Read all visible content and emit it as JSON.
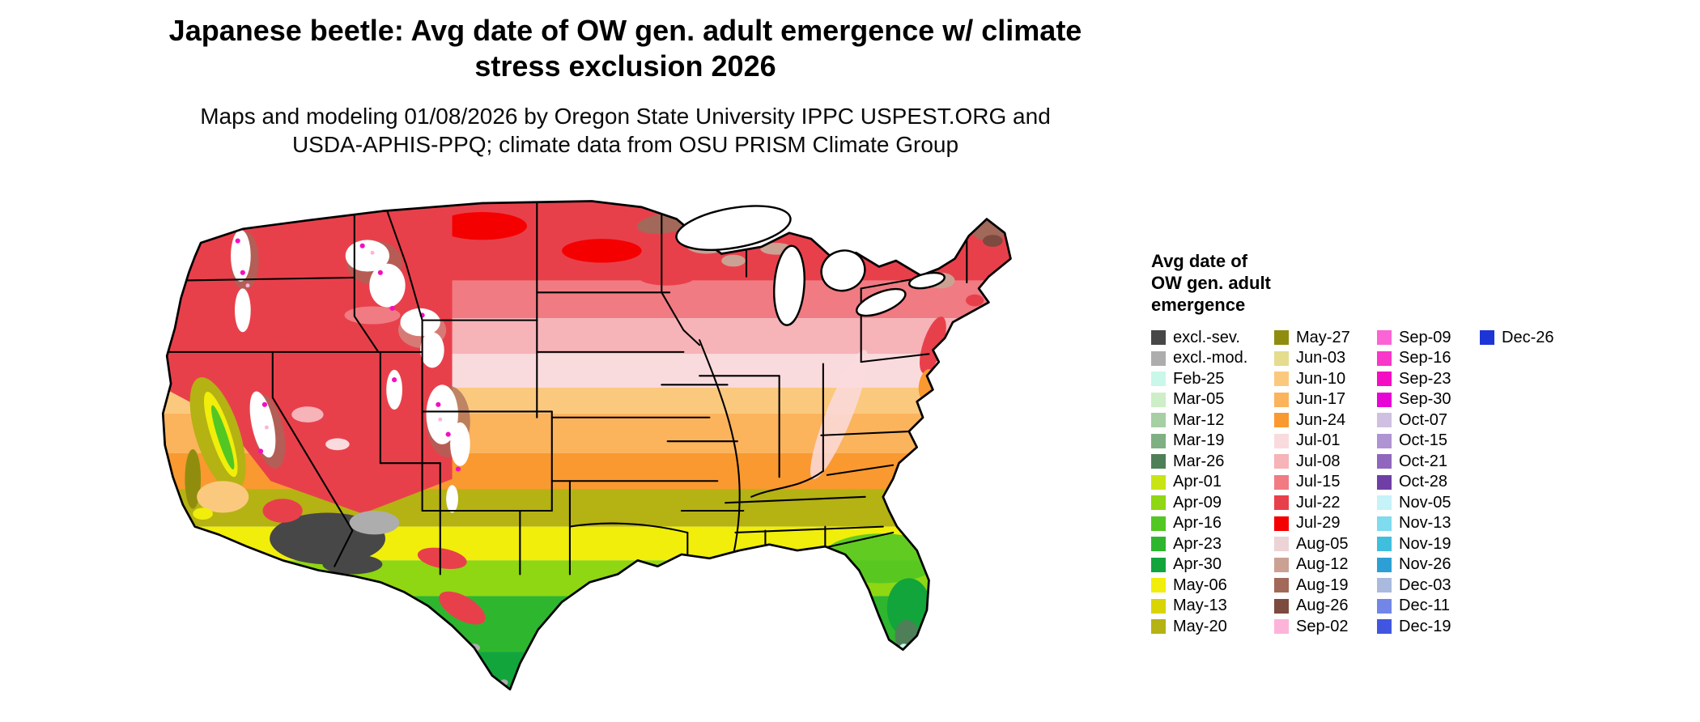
{
  "header": {
    "title_line1": "Japanese beetle: Avg date of OW gen. adult emergence w/ climate",
    "title_line2": "stress exclusion 2026",
    "subtitle_line1": "Maps and modeling 01/08/2026 by Oregon State University IPPC USPEST.ORG and",
    "subtitle_line2": "USDA-APHIS-PPQ; climate data from OSU PRISM Climate Group"
  },
  "legend": {
    "title_line1": "Avg date of",
    "title_line2": "OW gen. adult",
    "title_line3": "emergence",
    "columns": [
      [
        {
          "label": "excl.-sev.",
          "color": "#474747"
        },
        {
          "label": "excl.-mod.",
          "color": "#adadad"
        },
        {
          "label": "Feb-25",
          "color": "#c9f7ea"
        },
        {
          "label": "Mar-05",
          "color": "#cdeec6"
        },
        {
          "label": "Mar-12",
          "color": "#a6cfa4"
        },
        {
          "label": "Mar-19",
          "color": "#7fb083"
        },
        {
          "label": "Mar-26",
          "color": "#4f7f58"
        },
        {
          "label": "Apr-01",
          "color": "#c8e414"
        },
        {
          "label": "Apr-09",
          "color": "#8fd613"
        },
        {
          "label": "Apr-16",
          "color": "#52c724"
        },
        {
          "label": "Apr-23",
          "color": "#2eb62e"
        },
        {
          "label": "Apr-30",
          "color": "#12a53c"
        },
        {
          "label": "May-06",
          "color": "#f0ee0a"
        },
        {
          "label": "May-13",
          "color": "#d9d504"
        },
        {
          "label": "May-20",
          "color": "#b5b213"
        }
      ],
      [
        {
          "label": "May-27",
          "color": "#908d0e"
        },
        {
          "label": "Jun-03",
          "color": "#e5dc8e"
        },
        {
          "label": "Jun-10",
          "color": "#fbc97e"
        },
        {
          "label": "Jun-17",
          "color": "#fbb35c"
        },
        {
          "label": "Jun-24",
          "color": "#f9992f"
        },
        {
          "label": "Jul-01",
          "color": "#fadbdd"
        },
        {
          "label": "Jul-08",
          "color": "#f6b3b8"
        },
        {
          "label": "Jul-15",
          "color": "#f07b82"
        },
        {
          "label": "Jul-22",
          "color": "#e8404b"
        },
        {
          "label": "Jul-29",
          "color": "#f40000"
        },
        {
          "label": "Aug-05",
          "color": "#ecd3d6"
        },
        {
          "label": "Aug-12",
          "color": "#cba193"
        },
        {
          "label": "Aug-19",
          "color": "#a2685a"
        },
        {
          "label": "Aug-26",
          "color": "#7c4a3e"
        },
        {
          "label": "Sep-02",
          "color": "#fdb4d8"
        }
      ],
      [
        {
          "label": "Sep-09",
          "color": "#fb64d5"
        },
        {
          "label": "Sep-16",
          "color": "#f937c9"
        },
        {
          "label": "Sep-23",
          "color": "#f50dc3"
        },
        {
          "label": "Sep-30",
          "color": "#e705d5"
        },
        {
          "label": "Oct-07",
          "color": "#cfc0e2"
        },
        {
          "label": "Oct-15",
          "color": "#af93d2"
        },
        {
          "label": "Oct-21",
          "color": "#9166bd"
        },
        {
          "label": "Oct-28",
          "color": "#6f3fa6"
        },
        {
          "label": "Nov-05",
          "color": "#c6f2fa"
        },
        {
          "label": "Nov-13",
          "color": "#7fdbee"
        },
        {
          "label": "Nov-19",
          "color": "#3fbede"
        },
        {
          "label": "Nov-26",
          "color": "#2d9fd4"
        },
        {
          "label": "Dec-03",
          "color": "#a9bade"
        },
        {
          "label": "Dec-11",
          "color": "#7286e8"
        },
        {
          "label": "Dec-19",
          "color": "#4156e0"
        }
      ],
      [
        {
          "label": "Dec-26",
          "color": "#1d35d6"
        }
      ]
    ]
  },
  "map": {
    "colors": {
      "background": "#ffffff",
      "state_border": "#000000",
      "lakes": "#ffffff"
    }
  }
}
